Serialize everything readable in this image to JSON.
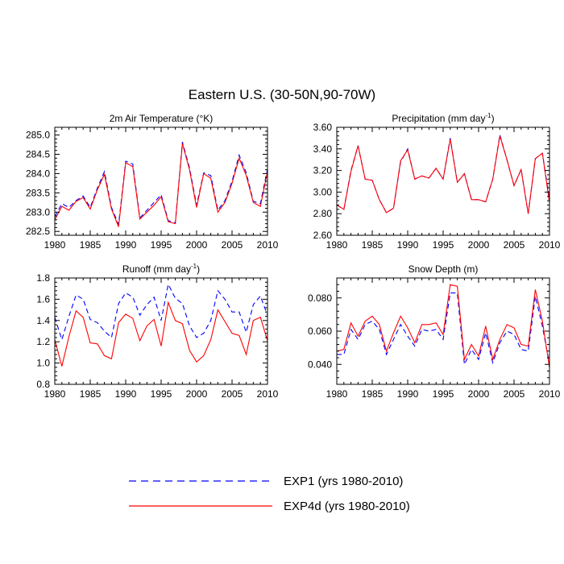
{
  "title": "Eastern U.S. (30-50N,90-70W)",
  "colors": {
    "exp1": "#0000ff",
    "exp4d": "#ff0000"
  },
  "legend": {
    "exp1_label": "EXP1 (yrs 1980-2010)",
    "exp4d_label": "EXP4d (yrs 1980-2010)"
  },
  "chart_data": [
    {
      "type": "line",
      "title": "2m Air Temperature (°K)",
      "x": [
        1980,
        1981,
        1982,
        1983,
        1984,
        1985,
        1986,
        1987,
        1988,
        1989,
        1990,
        1991,
        1992,
        1993,
        1994,
        1995,
        1996,
        1997,
        1998,
        1999,
        2000,
        2001,
        2002,
        2003,
        2004,
        2005,
        2006,
        2007,
        2008,
        2009,
        2010
      ],
      "xlim": [
        1980,
        2010
      ],
      "xticks": [
        "1980",
        "1985",
        "1990",
        "1995",
        "2000",
        "2005",
        "2010"
      ],
      "ylim": [
        282.4,
        285.2
      ],
      "yticks": [
        "282.5",
        "283.0",
        "283.5",
        "284.0",
        "284.5",
        "285.0"
      ],
      "series": [
        {
          "name": "EXP1 (yrs 1980-2010)",
          "values": [
            282.88,
            283.22,
            283.12,
            283.3,
            283.42,
            283.12,
            283.62,
            284.05,
            283.12,
            282.68,
            284.32,
            284.25,
            282.85,
            283.05,
            283.25,
            283.45,
            282.78,
            282.72,
            284.82,
            284.15,
            283.18,
            284.02,
            283.95,
            283.05,
            283.3,
            283.8,
            284.48,
            284.02,
            283.28,
            283.22,
            284.12
          ]
        },
        {
          "name": "EXP4d (yrs 1980-2010)",
          "values": [
            282.8,
            283.15,
            283.05,
            283.28,
            283.38,
            283.08,
            283.58,
            283.98,
            283.08,
            282.62,
            284.28,
            284.18,
            282.82,
            283.0,
            283.18,
            283.4,
            282.75,
            282.7,
            284.78,
            284.1,
            283.12,
            284.0,
            283.88,
            283.0,
            283.25,
            283.75,
            284.4,
            283.95,
            283.25,
            283.15,
            284.05
          ]
        }
      ]
    },
    {
      "type": "line",
      "title": "Precipitation (mm day",
      "title_sup": "-1",
      "title_end": ")",
      "x": [
        1980,
        1981,
        1982,
        1983,
        1984,
        1985,
        1986,
        1987,
        1988,
        1989,
        1990,
        1991,
        1992,
        1993,
        1994,
        1995,
        1996,
        1997,
        1998,
        1999,
        2000,
        2001,
        2002,
        2003,
        2004,
        2005,
        2006,
        2007,
        2008,
        2009,
        2010
      ],
      "xlim": [
        1980,
        2010
      ],
      "xticks": [
        "1980",
        "1985",
        "1990",
        "1995",
        "2000",
        "2005",
        "2010"
      ],
      "ylim": [
        2.6,
        3.6
      ],
      "yticks": [
        "2.60",
        "2.80",
        "3.00",
        "3.20",
        "3.40",
        "3.60"
      ],
      "series": [
        {
          "name": "EXP1 (yrs 1980-2010)",
          "values": [
            2.88,
            2.84,
            3.2,
            3.43,
            3.12,
            3.11,
            2.93,
            2.81,
            2.85,
            3.28,
            3.4,
            3.12,
            3.15,
            3.13,
            3.22,
            3.12,
            3.5,
            3.09,
            3.17,
            2.93,
            2.93,
            2.91,
            3.12,
            3.53,
            3.3,
            3.06,
            3.21,
            2.8,
            3.31,
            3.36,
            2.93
          ]
        },
        {
          "name": "EXP4d (yrs 1980-2010)",
          "values": [
            2.88,
            2.84,
            3.19,
            3.43,
            3.12,
            3.11,
            2.93,
            2.81,
            2.85,
            3.29,
            3.39,
            3.12,
            3.15,
            3.13,
            3.22,
            3.12,
            3.49,
            3.09,
            3.17,
            2.93,
            2.93,
            2.91,
            3.12,
            3.52,
            3.3,
            3.06,
            3.21,
            2.8,
            3.31,
            3.36,
            2.9
          ]
        }
      ]
    },
    {
      "type": "line",
      "title": "Runoff (mm day",
      "title_sup": "-1",
      "title_end": ")",
      "x": [
        1980,
        1981,
        1982,
        1983,
        1984,
        1985,
        1986,
        1987,
        1988,
        1989,
        1990,
        1991,
        1992,
        1993,
        1994,
        1995,
        1996,
        1997,
        1998,
        1999,
        2000,
        2001,
        2002,
        2003,
        2004,
        2005,
        2006,
        2007,
        2008,
        2009,
        2010
      ],
      "xlim": [
        1980,
        2010
      ],
      "xticks": [
        "1980",
        "1985",
        "1990",
        "1995",
        "2000",
        "2005",
        "2010"
      ],
      "ylim": [
        0.8,
        1.8
      ],
      "yticks": [
        "0.8",
        "1.0",
        "1.2",
        "1.4",
        "1.6",
        "1.8"
      ],
      "series": [
        {
          "name": "EXP1 (yrs 1980-2010)",
          "values": [
            1.43,
            1.22,
            1.44,
            1.64,
            1.6,
            1.41,
            1.38,
            1.3,
            1.24,
            1.56,
            1.66,
            1.62,
            1.45,
            1.55,
            1.62,
            1.4,
            1.74,
            1.61,
            1.56,
            1.35,
            1.24,
            1.28,
            1.4,
            1.68,
            1.6,
            1.48,
            1.48,
            1.29,
            1.55,
            1.63,
            1.45
          ]
        },
        {
          "name": "EXP4d (yrs 1980-2010)",
          "values": [
            1.22,
            0.97,
            1.25,
            1.49,
            1.43,
            1.19,
            1.18,
            1.07,
            1.04,
            1.38,
            1.46,
            1.42,
            1.21,
            1.35,
            1.41,
            1.16,
            1.57,
            1.4,
            1.37,
            1.12,
            1.01,
            1.07,
            1.22,
            1.5,
            1.39,
            1.28,
            1.26,
            1.08,
            1.4,
            1.43,
            1.21
          ]
        }
      ]
    },
    {
      "type": "line",
      "title": "Snow Depth (m)",
      "x": [
        1980,
        1981,
        1982,
        1983,
        1984,
        1985,
        1986,
        1987,
        1988,
        1989,
        1990,
        1991,
        1992,
        1993,
        1994,
        1995,
        1996,
        1997,
        1998,
        1999,
        2000,
        2001,
        2002,
        2003,
        2004,
        2005,
        2006,
        2007,
        2008,
        2009,
        2010
      ],
      "xlim": [
        1980,
        2010
      ],
      "xticks": [
        "1980",
        "1985",
        "1990",
        "1995",
        "2000",
        "2005",
        "2010"
      ],
      "ylim": [
        0.028,
        0.092
      ],
      "yticks": [
        "0.040",
        "0.060",
        "0.080"
      ],
      "series": [
        {
          "name": "EXP1 (yrs 1980-2010)",
          "values": [
            0.046,
            0.046,
            0.061,
            0.055,
            0.064,
            0.066,
            0.061,
            0.046,
            0.055,
            0.064,
            0.057,
            0.051,
            0.061,
            0.06,
            0.061,
            0.055,
            0.083,
            0.083,
            0.04,
            0.049,
            0.043,
            0.059,
            0.041,
            0.053,
            0.06,
            0.058,
            0.049,
            0.048,
            0.081,
            0.063,
            0.04
          ]
        },
        {
          "name": "EXP4d (yrs 1980-2010)",
          "values": [
            0.048,
            0.049,
            0.065,
            0.057,
            0.066,
            0.069,
            0.064,
            0.048,
            0.059,
            0.069,
            0.062,
            0.053,
            0.064,
            0.064,
            0.065,
            0.058,
            0.088,
            0.087,
            0.043,
            0.052,
            0.045,
            0.063,
            0.043,
            0.055,
            0.064,
            0.062,
            0.052,
            0.051,
            0.085,
            0.066,
            0.038
          ]
        }
      ]
    }
  ]
}
